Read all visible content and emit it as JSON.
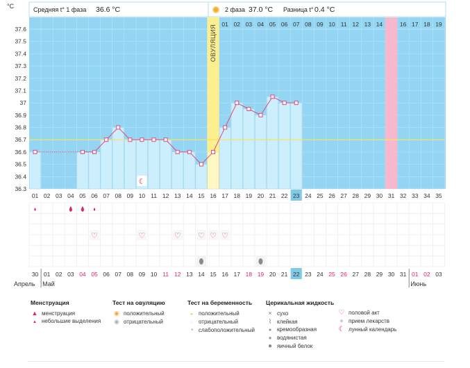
{
  "header": {
    "phase1_label": "Средняя t° 1 фаза",
    "phase1_value": "36.6 °C",
    "phase2_label": "2 фаза",
    "phase2_value": "37.0 °C",
    "diff_label": "Разница t°",
    "diff_value": "0.4 °C",
    "unit": "°C"
  },
  "ovulation_label": "ОВУЛЯЦИЯ",
  "chart_data": {
    "type": "line",
    "title": "",
    "ylabel": "°C",
    "ylim": [
      36.3,
      37.6
    ],
    "y_ticks": [
      36.3,
      36.4,
      36.5,
      36.6,
      36.7,
      36.8,
      36.9,
      37.0,
      37.1,
      37.2,
      37.3,
      37.4,
      37.5,
      37.6
    ],
    "y_tick_labels": [
      "36.3",
      "36.4",
      "36.5",
      "36.6",
      "36.7",
      "36.8",
      "36.9",
      "37",
      "37.1",
      "37.2",
      "37.3",
      "37.4",
      "37.5",
      "37.6"
    ],
    "cycle_days": [
      "01",
      "02",
      "03",
      "04",
      "05",
      "06",
      "07",
      "08",
      "09",
      "10",
      "11",
      "12",
      "13",
      "14",
      "15",
      "16",
      "17",
      "18",
      "19",
      "20",
      "21",
      "22",
      "23",
      "24",
      "25",
      "26",
      "27",
      "28",
      "29",
      "30",
      "31",
      "32",
      "33",
      "34",
      "35"
    ],
    "top_days": [
      "01",
      "02",
      "03",
      "04",
      "05",
      "06",
      "07",
      "08",
      "09",
      "10",
      "11",
      "12",
      "13",
      "14",
      "15",
      "16",
      "17",
      "18",
      "19"
    ],
    "top_days_start_cycle_day": 17,
    "current_cycle_day": 23,
    "ovulation_cycle_day": 16,
    "next_period_cycle_day": 31,
    "phase1_average": 36.6,
    "phase2_average": 37.0,
    "coverline": 36.7,
    "series": [
      {
        "values": [
          36.6,
          null,
          null,
          null,
          36.6,
          36.6,
          36.7,
          36.8,
          36.7,
          36.7,
          36.7,
          36.7,
          36.6,
          36.6,
          36.5,
          36.6,
          36.8,
          37.0,
          36.95,
          36.9,
          37.05,
          37.0,
          37.0,
          null,
          null,
          null,
          null,
          null,
          null,
          null,
          null,
          null,
          null,
          null,
          null
        ]
      }
    ]
  },
  "markers": {
    "moon_days": [
      10
    ],
    "menstruation_heavy_days": [
      4,
      5
    ],
    "menstruation_light_days": [
      1,
      6
    ],
    "sex_days": [
      6,
      10,
      13,
      15,
      16,
      17
    ],
    "egg_white_days": [
      15,
      20
    ]
  },
  "dates": {
    "labels": [
      "30",
      "01",
      "02",
      "03",
      "04",
      "05",
      "06",
      "07",
      "08",
      "09",
      "10",
      "11",
      "12",
      "13",
      "14",
      "15",
      "16",
      "17",
      "18",
      "19",
      "20",
      "21",
      "22",
      "23",
      "24",
      "25",
      "26",
      "27",
      "28",
      "29",
      "30",
      "31",
      "01",
      "02",
      "03"
    ],
    "weekend_cycle_days": [
      5,
      6,
      12,
      13,
      19,
      20,
      26,
      27,
      33,
      34
    ],
    "month_breaks": [
      {
        "cycle_day": 2,
        "label": "Май"
      },
      {
        "cycle_day": 33,
        "label": "Июнь"
      }
    ],
    "first_month_label": "Апрель"
  },
  "legend": {
    "menstruation": {
      "title": "Менструация",
      "items": [
        {
          "icon": "drop-icon",
          "label": "менструация"
        },
        {
          "icon": "small-drop-icon",
          "label": "небольшие выделения"
        }
      ]
    },
    "ovulation_test": {
      "title": "Тест на овуляцию",
      "items": [
        {
          "icon": "positive-test-icon",
          "label": "положительный"
        },
        {
          "icon": "negative-test-icon",
          "label": "отрицательный"
        }
      ]
    },
    "pregnancy_test": {
      "title": "Тест на беременность",
      "items": [
        {
          "icon": "positive-pregnancy-icon",
          "label": "положительный"
        },
        {
          "icon": "negative-pregnancy-icon",
          "label": "отрицательный"
        },
        {
          "icon": "weak-pregnancy-icon",
          "label": "слабоположительный"
        }
      ]
    },
    "cervical": {
      "title": "Церикальная жидкость",
      "items": [
        {
          "icon": "dry-icon",
          "glyph": "×",
          "label": "сухо"
        },
        {
          "icon": "sticky-icon",
          "glyph": "⌇",
          "label": "клейкая"
        },
        {
          "icon": "creamy-icon",
          "glyph": "●",
          "label": "кремообразная"
        },
        {
          "icon": "watery-icon",
          "glyph": "●",
          "label": "водянистая"
        },
        {
          "icon": "egg-white-icon",
          "glyph": "●",
          "label": "яичный белок"
        }
      ]
    },
    "other": {
      "items": [
        {
          "icon": "heart-icon",
          "glyph": "♡",
          "label": "половой акт"
        },
        {
          "icon": "pill-icon",
          "glyph": "●",
          "label": "прием лекарств"
        },
        {
          "icon": "moon-icon",
          "glyph": "☾",
          "label": "лунный календарь"
        }
      ]
    }
  },
  "colors": {
    "plot_bg": "#93d5f2",
    "grid": "#b9e4f7",
    "bar": "#cdeefc",
    "bar_border": "#9fd4ef",
    "ovulation": "#fbef8f",
    "next_period": "#f7b7cc",
    "line": "#e24b7e",
    "coverline": "#f2e36a",
    "current_day": "#7fcbe6",
    "weekend_text": "#e0245e",
    "heart": "#e24b7e",
    "drop": "#e0245e"
  }
}
